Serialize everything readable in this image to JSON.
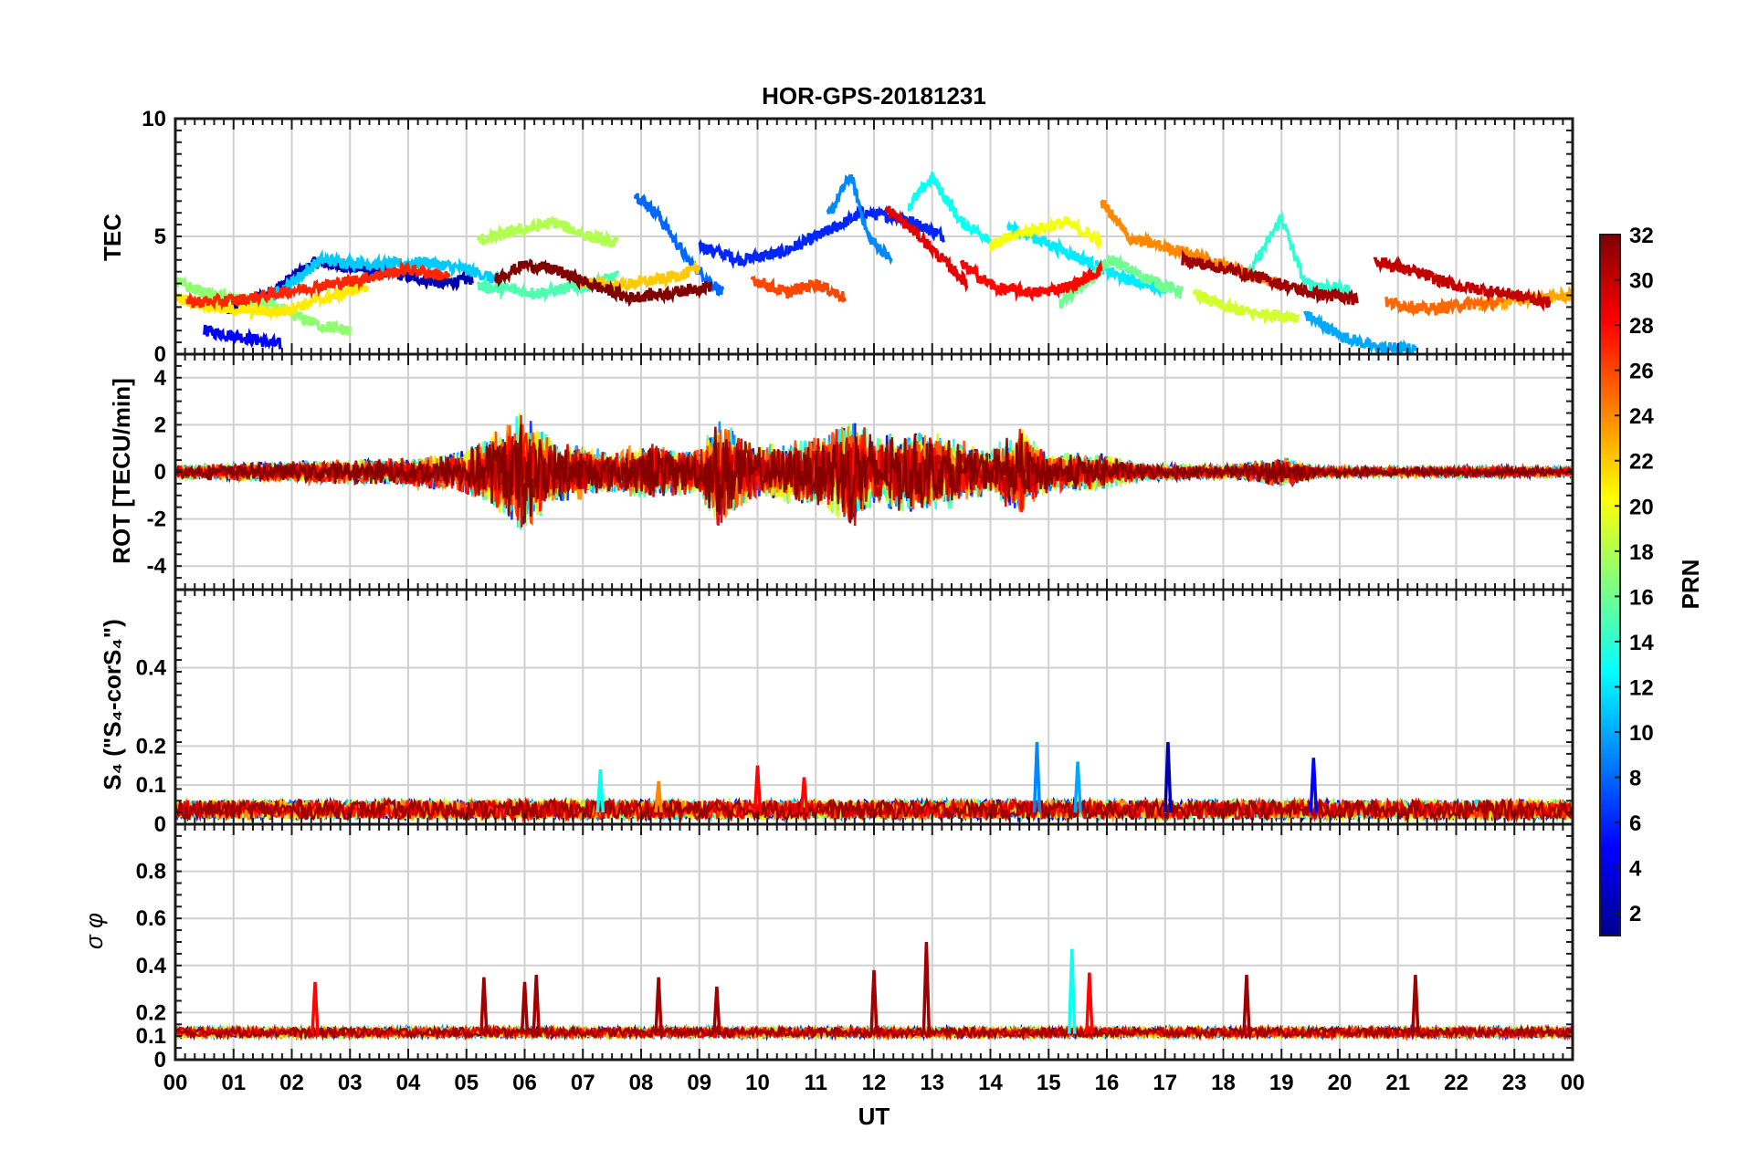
{
  "chart_data": {
    "type": "line",
    "title": "HOR-GPS-20181231",
    "xlabel": "UT",
    "x_range": [
      0,
      24
    ],
    "x_ticks": [
      "00",
      "01",
      "02",
      "03",
      "04",
      "05",
      "06",
      "07",
      "08",
      "09",
      "10",
      "11",
      "12",
      "13",
      "14",
      "15",
      "16",
      "17",
      "18",
      "19",
      "20",
      "21",
      "22",
      "23",
      "00"
    ],
    "colorbar": {
      "label": "PRN",
      "range": [
        1,
        32
      ],
      "ticks": [
        "2",
        "4",
        "6",
        "8",
        "10",
        "12",
        "14",
        "16",
        "18",
        "20",
        "22",
        "24",
        "26",
        "28",
        "30",
        "32"
      ],
      "colors_low_to_high": [
        "#00008f",
        "#0000ff",
        "#0080ff",
        "#00ffff",
        "#80ff80",
        "#ffff00",
        "#ff8000",
        "#ff0000",
        "#800000"
      ]
    },
    "panels": [
      {
        "id": "tec",
        "ylabel": "TEC",
        "ylim": [
          0,
          10
        ],
        "y_ticks": [
          0,
          5,
          10
        ],
        "series": [
          {
            "prn": 2,
            "points": [
              [
                0.9,
                1.8
              ],
              [
                1.6,
                2.6
              ],
              [
                2.4,
                3.9
              ],
              [
                3.6,
                3.5
              ],
              [
                4.6,
                3.0
              ],
              [
                5.1,
                3.2
              ]
            ]
          },
          {
            "prn": 5,
            "points": [
              [
                0.5,
                1.0
              ],
              [
                1.2,
                0.7
              ],
              [
                1.8,
                0.4
              ]
            ]
          },
          {
            "prn": 6,
            "points": [
              [
                9.0,
                4.6
              ],
              [
                9.7,
                4.0
              ],
              [
                10.4,
                4.3
              ],
              [
                11.2,
                5.2
              ],
              [
                11.8,
                6.0
              ],
              [
                12.5,
                5.8
              ],
              [
                13.2,
                5.0
              ]
            ]
          },
          {
            "prn": 8,
            "points": [
              [
                7.9,
                6.8
              ],
              [
                8.3,
                5.9
              ],
              [
                8.8,
                4.0
              ],
              [
                9.4,
                2.6
              ]
            ]
          },
          {
            "prn": 9,
            "points": [
              [
                11.2,
                5.8
              ],
              [
                11.6,
                7.6
              ],
              [
                11.9,
                5.0
              ],
              [
                12.3,
                4.0
              ]
            ]
          },
          {
            "prn": 10,
            "points": [
              [
                19.4,
                1.7
              ],
              [
                20.0,
                0.8
              ],
              [
                20.6,
                0.3
              ],
              [
                21.3,
                0.2
              ]
            ]
          },
          {
            "prn": 11,
            "points": [
              [
                1.7,
                2.5
              ],
              [
                2.5,
                4.0
              ],
              [
                3.5,
                3.8
              ],
              [
                4.3,
                3.9
              ],
              [
                5.0,
                3.6
              ],
              [
                5.6,
                3.1
              ]
            ]
          },
          {
            "prn": 12,
            "points": [
              [
                14.3,
                5.4
              ],
              [
                14.9,
                4.8
              ],
              [
                15.6,
                4.0
              ],
              [
                16.3,
                3.2
              ],
              [
                17.0,
                2.8
              ]
            ]
          },
          {
            "prn": 13,
            "points": [
              [
                12.6,
                6.3
              ],
              [
                13.0,
                7.5
              ],
              [
                13.5,
                5.6
              ],
              [
                14.0,
                4.9
              ]
            ]
          },
          {
            "prn": 14,
            "points": [
              [
                18.4,
                3.2
              ],
              [
                19.0,
                5.8
              ],
              [
                19.4,
                3.0
              ],
              [
                20.2,
                2.7
              ]
            ]
          },
          {
            "prn": 15,
            "points": [
              [
                5.2,
                2.9
              ],
              [
                6.2,
                2.6
              ],
              [
                7.0,
                2.9
              ],
              [
                7.6,
                3.3
              ]
            ]
          },
          {
            "prn": 16,
            "points": [
              [
                15.2,
                2.2
              ],
              [
                16.1,
                4.0
              ],
              [
                16.6,
                3.3
              ],
              [
                17.3,
                2.6
              ]
            ]
          },
          {
            "prn": 17,
            "points": [
              [
                0.0,
                3.1
              ],
              [
                0.6,
                2.5
              ],
              [
                1.5,
                2.2
              ],
              [
                2.5,
                1.2
              ],
              [
                3.0,
                1.0
              ]
            ]
          },
          {
            "prn": 18,
            "points": [
              [
                5.2,
                4.8
              ],
              [
                5.8,
                5.2
              ],
              [
                6.5,
                5.6
              ],
              [
                7.1,
                5.0
              ],
              [
                7.6,
                4.7
              ]
            ]
          },
          {
            "prn": 19,
            "points": [
              [
                17.5,
                2.6
              ],
              [
                18.0,
                2.0
              ],
              [
                18.6,
                1.7
              ],
              [
                19.3,
                1.6
              ]
            ]
          },
          {
            "prn": 20,
            "points": [
              [
                14.0,
                4.6
              ],
              [
                14.6,
                5.2
              ],
              [
                15.3,
                5.6
              ],
              [
                15.9,
                4.8
              ]
            ]
          },
          {
            "prn": 21,
            "points": [
              [
                0.0,
                2.4
              ],
              [
                0.9,
                1.9
              ],
              [
                1.8,
                1.8
              ],
              [
                2.6,
                2.4
              ],
              [
                3.3,
                2.9
              ]
            ]
          },
          {
            "prn": 22,
            "points": [
              [
                6.8,
                3.1
              ],
              [
                7.6,
                2.9
              ],
              [
                8.4,
                3.2
              ],
              [
                9.0,
                3.6
              ]
            ]
          },
          {
            "prn": 23,
            "points": [
              [
                22.4,
                2.1
              ],
              [
                23.0,
                2.3
              ],
              [
                23.6,
                2.4
              ],
              [
                24.0,
                2.5
              ]
            ]
          },
          {
            "prn": 24,
            "points": [
              [
                15.9,
                6.5
              ],
              [
                16.4,
                4.9
              ],
              [
                17.4,
                4.3
              ],
              [
                18.2,
                3.6
              ],
              [
                19.0,
                3.0
              ]
            ]
          },
          {
            "prn": 25,
            "points": [
              [
                20.8,
                2.2
              ],
              [
                21.5,
                1.9
              ],
              [
                22.1,
                2.1
              ],
              [
                22.8,
                2.2
              ]
            ]
          },
          {
            "prn": 26,
            "points": [
              [
                9.9,
                3.2
              ],
              [
                10.5,
                2.6
              ],
              [
                11.0,
                3.0
              ],
              [
                11.5,
                2.4
              ]
            ]
          },
          {
            "prn": 27,
            "points": [
              [
                0.2,
                2.2
              ],
              [
                1.1,
                2.3
              ],
              [
                2.0,
                2.7
              ],
              [
                3.0,
                3.1
              ],
              [
                4.0,
                3.6
              ],
              [
                4.7,
                3.3
              ]
            ]
          },
          {
            "prn": 28,
            "points": [
              [
                13.5,
                3.8
              ],
              [
                14.1,
                2.8
              ],
              [
                14.8,
                2.6
              ],
              [
                15.4,
                2.9
              ],
              [
                15.9,
                3.6
              ]
            ]
          },
          {
            "prn": 29,
            "points": [
              [
                12.2,
                6.2
              ],
              [
                12.7,
                5.2
              ],
              [
                13.1,
                4.2
              ],
              [
                13.6,
                3.0
              ]
            ]
          },
          {
            "prn": 30,
            "points": [
              [
                20.6,
                4.0
              ],
              [
                21.4,
                3.4
              ],
              [
                22.0,
                2.9
              ],
              [
                22.8,
                2.6
              ],
              [
                23.6,
                2.2
              ]
            ]
          },
          {
            "prn": 31,
            "points": [
              [
                17.3,
                4.0
              ],
              [
                18.1,
                3.6
              ],
              [
                18.7,
                3.2
              ],
              [
                19.5,
                2.6
              ],
              [
                20.3,
                2.3
              ]
            ]
          },
          {
            "prn": 32,
            "points": [
              [
                5.5,
                3.2
              ],
              [
                6.0,
                3.8
              ],
              [
                6.5,
                3.6
              ],
              [
                7.1,
                3.0
              ],
              [
                7.8,
                2.4
              ],
              [
                8.5,
                2.6
              ],
              [
                9.2,
                2.9
              ]
            ]
          }
        ]
      },
      {
        "id": "rot",
        "ylabel": "ROT [TECU/min]",
        "ylim": [
          -5,
          5
        ],
        "y_ticks": [
          -4,
          -2,
          0,
          2,
          4
        ],
        "activity": [
          [
            0,
            0.3
          ],
          [
            2,
            0.5
          ],
          [
            4,
            0.6
          ],
          [
            5,
            1.0
          ],
          [
            6,
            2.8
          ],
          [
            6.5,
            1.4
          ],
          [
            7,
            1.2
          ],
          [
            7.5,
            0.9
          ],
          [
            8,
            1.3
          ],
          [
            9,
            1.0
          ],
          [
            9.3,
            2.4
          ],
          [
            10,
            1.1
          ],
          [
            11,
            1.6
          ],
          [
            11.7,
            2.5
          ],
          [
            12,
            1.6
          ],
          [
            12.5,
            1.8
          ],
          [
            13,
            1.9
          ],
          [
            14,
            1.0
          ],
          [
            14.5,
            2.0
          ],
          [
            15,
            0.9
          ],
          [
            16,
            0.8
          ],
          [
            16.5,
            0.4
          ],
          [
            18,
            0.3
          ],
          [
            19.1,
            0.7
          ],
          [
            19.6,
            0.25
          ],
          [
            21,
            0.2
          ],
          [
            22.5,
            0.25
          ],
          [
            24,
            0.2
          ]
        ]
      },
      {
        "id": "s4",
        "ylabel": "S₄ (\"S₄-corS₄\")",
        "ylim": [
          0,
          0.6
        ],
        "y_ticks": [
          0,
          0.1,
          0.2,
          0.4
        ],
        "base_level": 0.03,
        "spikes": [
          {
            "x": 14.8,
            "y": 0.21,
            "prn": 9
          },
          {
            "x": 15.5,
            "y": 0.16,
            "prn": 10
          },
          {
            "x": 17.05,
            "y": 0.21,
            "prn": 2
          },
          {
            "x": 19.55,
            "y": 0.17,
            "prn": 5
          },
          {
            "x": 7.3,
            "y": 0.14,
            "prn": 13
          },
          {
            "x": 8.3,
            "y": 0.11,
            "prn": 24
          },
          {
            "x": 10.0,
            "y": 0.15,
            "prn": 28
          },
          {
            "x": 10.8,
            "y": 0.12,
            "prn": 28
          }
        ]
      },
      {
        "id": "sigma_phi",
        "ylabel": "σ φ",
        "ylim": [
          0,
          1
        ],
        "y_ticks": [
          0,
          0.1,
          0.2,
          0.4,
          0.6,
          0.8
        ],
        "base_level": 0.11,
        "spikes": [
          {
            "x": 2.4,
            "y": 0.33,
            "prn": 28
          },
          {
            "x": 5.3,
            "y": 0.35,
            "prn": 31
          },
          {
            "x": 6.0,
            "y": 0.33,
            "prn": 31
          },
          {
            "x": 6.2,
            "y": 0.36,
            "prn": 31
          },
          {
            "x": 8.3,
            "y": 0.35,
            "prn": 31
          },
          {
            "x": 9.3,
            "y": 0.31,
            "prn": 31
          },
          {
            "x": 12.0,
            "y": 0.38,
            "prn": 31
          },
          {
            "x": 12.9,
            "y": 0.5,
            "prn": 31
          },
          {
            "x": 15.4,
            "y": 0.47,
            "prn": 13
          },
          {
            "x": 15.7,
            "y": 0.37,
            "prn": 28
          },
          {
            "x": 18.4,
            "y": 0.36,
            "prn": 31
          },
          {
            "x": 21.3,
            "y": 0.36,
            "prn": 31
          }
        ]
      }
    ]
  }
}
